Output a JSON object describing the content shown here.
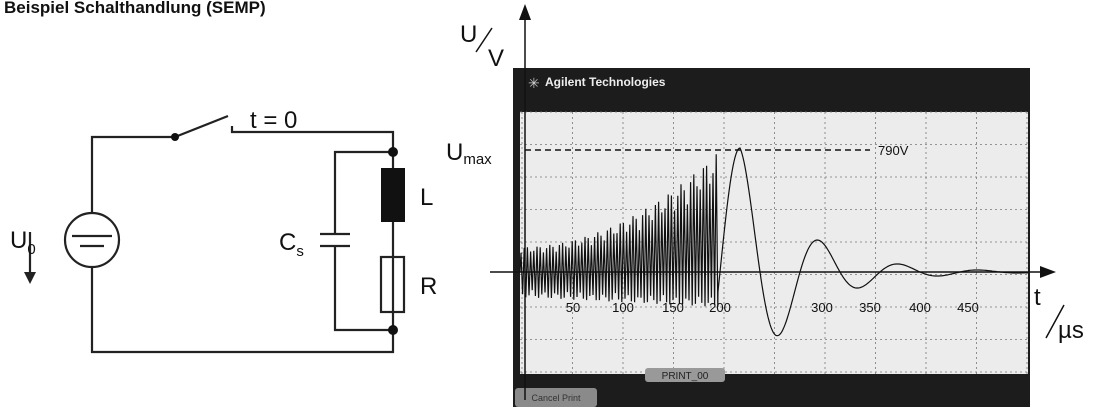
{
  "header": {
    "title": "Beispiel Schalthandlung (SEMP)"
  },
  "circuit": {
    "source": {
      "main": "U",
      "sub": "0"
    },
    "switch": "t = 0",
    "inductor": "L",
    "capacitor": {
      "main": "C",
      "sub": "s"
    },
    "resistor": "R"
  },
  "scope": {
    "brand": "Agilent Technologies",
    "y_axis": {
      "quantity": "U",
      "unit": "V"
    },
    "x_axis": {
      "quantity": "t",
      "unit": "µs"
    },
    "peak_label": {
      "main": "U",
      "sub": "max"
    },
    "peak_value": "790V",
    "x_tick_labels": [
      "50",
      "100",
      "150",
      "200",
      "300",
      "350",
      "400",
      "450"
    ],
    "status": "PRINT_00",
    "button": "Cancel Print"
  }
}
